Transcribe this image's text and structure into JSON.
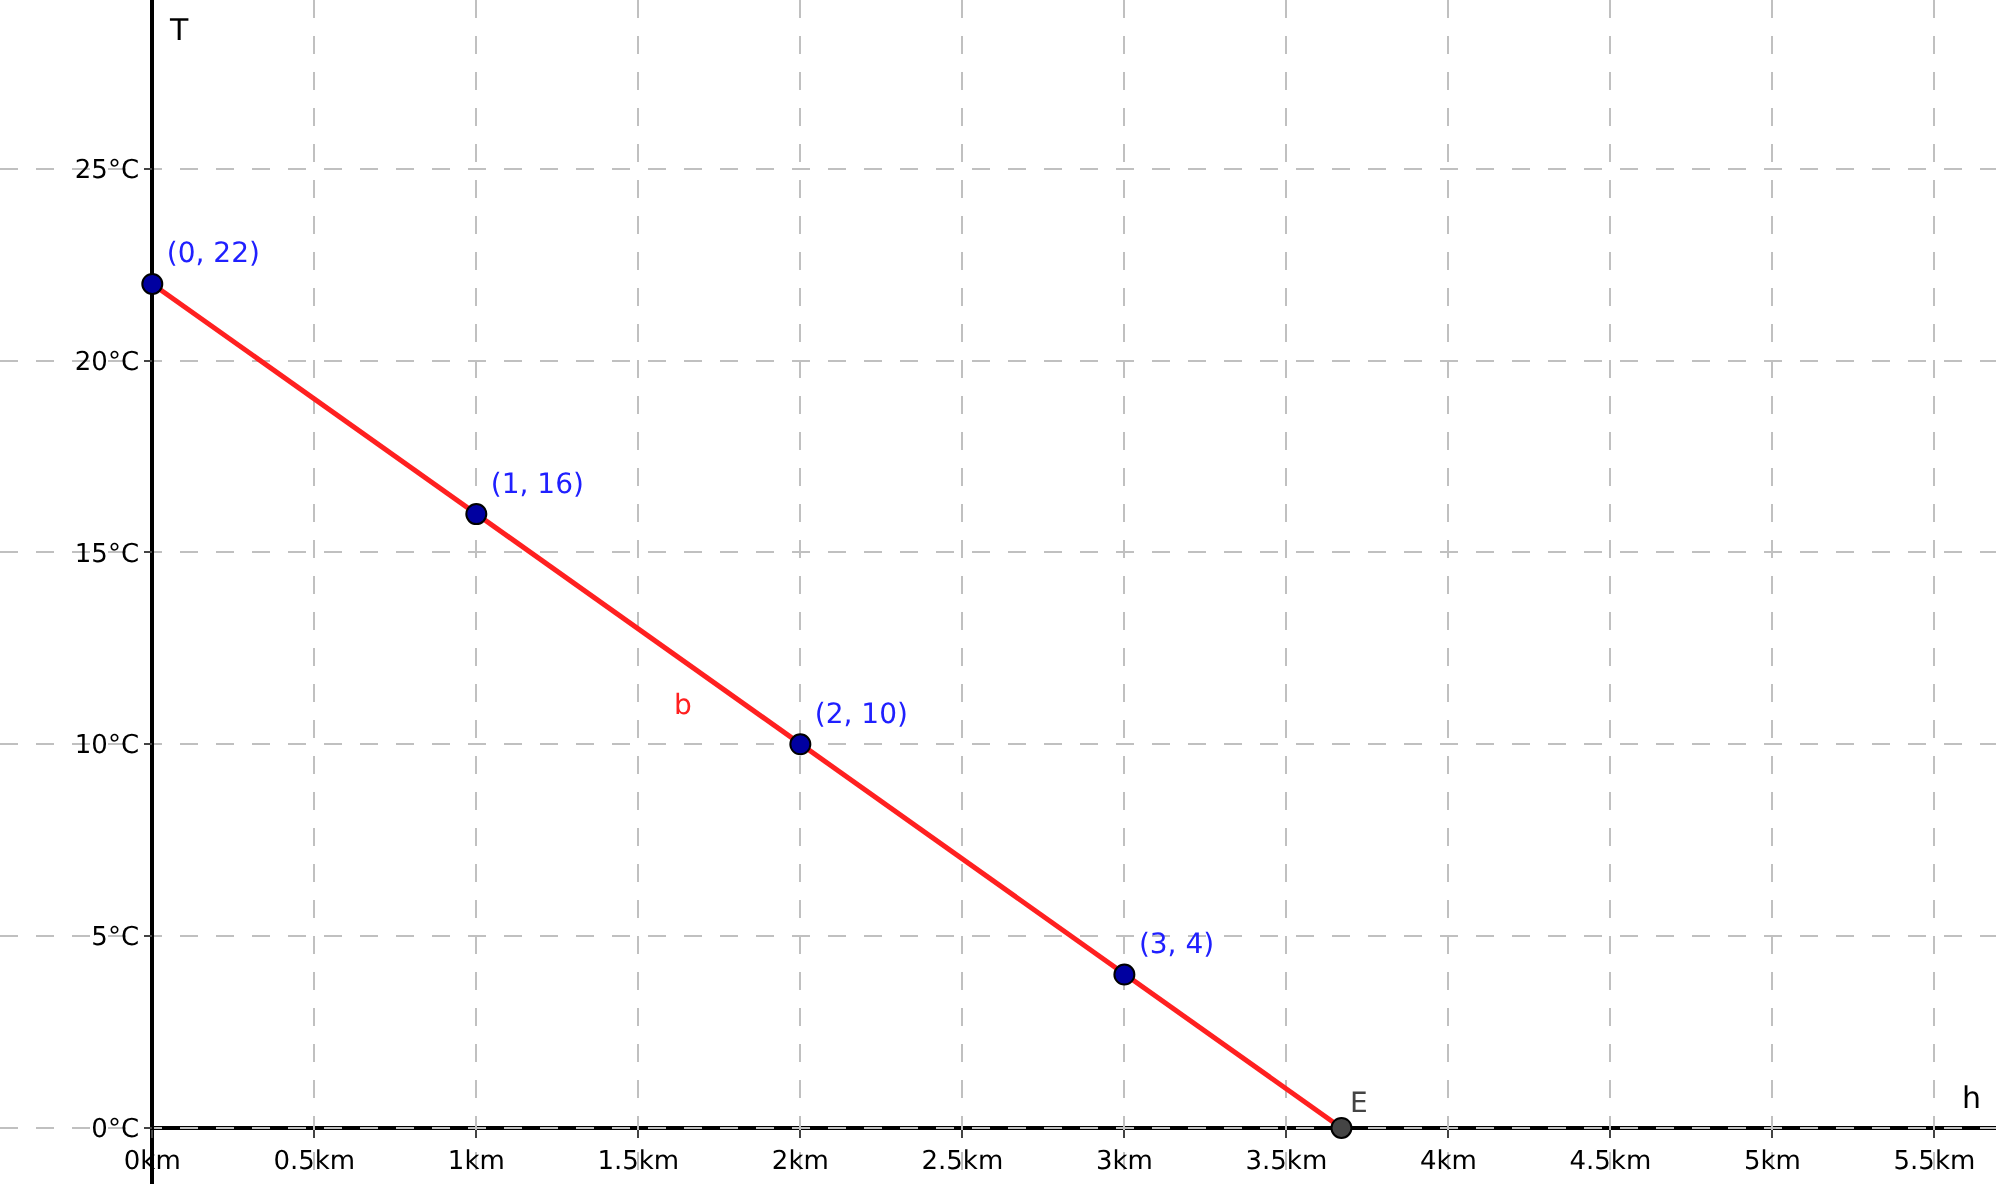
{
  "chart_data": {
    "type": "line",
    "xlabel": "h",
    "ylabel": "T",
    "xlim": [
      -0.47,
      5.69
    ],
    "ylim": [
      -1.46,
      29.4
    ],
    "xticks": [
      {
        "value": 0,
        "label": "0km"
      },
      {
        "value": 0.5,
        "label": "0.5km"
      },
      {
        "value": 1,
        "label": "1km"
      },
      {
        "value": 1.5,
        "label": "1.5km"
      },
      {
        "value": 2,
        "label": "2km"
      },
      {
        "value": 2.5,
        "label": "2.5km"
      },
      {
        "value": 3,
        "label": "3km"
      },
      {
        "value": 3.5,
        "label": "3.5km"
      },
      {
        "value": 4,
        "label": "4km"
      },
      {
        "value": 4.5,
        "label": "4.5km"
      },
      {
        "value": 5,
        "label": "5km"
      },
      {
        "value": 5.5,
        "label": "5.5km"
      }
    ],
    "yticks": [
      {
        "value": 0,
        "label": "0°C"
      },
      {
        "value": 5,
        "label": "5°C"
      },
      {
        "value": 10,
        "label": "10°C"
      },
      {
        "value": 15,
        "label": "15°C"
      },
      {
        "value": 20,
        "label": "20°C"
      },
      {
        "value": 25,
        "label": "25°C"
      }
    ],
    "grid": true,
    "series": [
      {
        "name": "b",
        "color": "#ff2020",
        "x": [
          0,
          3.67
        ],
        "values": [
          22,
          0
        ],
        "marker": "none"
      },
      {
        "type": "scatter",
        "color": "#0000a0",
        "x": [
          0,
          1,
          2,
          3
        ],
        "values": [
          22,
          16,
          10,
          4
        ],
        "marker": "circle",
        "value_labels": [
          "(0, 22)",
          "(1, 16)",
          "(2, 10)",
          "(3, 4)"
        ]
      },
      {
        "name": "E",
        "type": "scatter",
        "color": "#444444",
        "x": [
          3.67
        ],
        "values": [
          0
        ],
        "marker": "circle"
      }
    ]
  }
}
